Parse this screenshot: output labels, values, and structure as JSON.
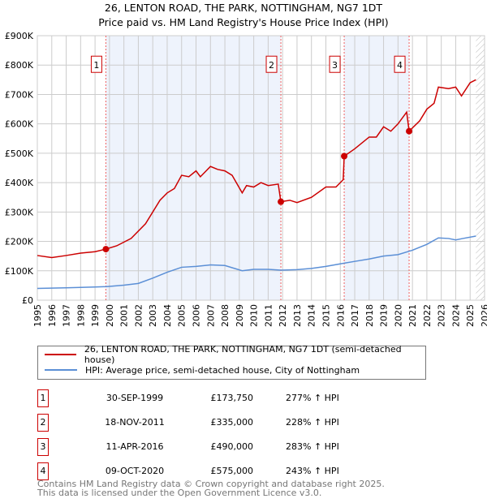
{
  "title": "26, LENTON ROAD, THE PARK, NOTTINGHAM, NG7 1DT",
  "subtitle": "Price paid vs. HM Land Registry's House Price Index (HPI)",
  "chart_data": {
    "type": "line",
    "xlim": [
      1995,
      2026
    ],
    "ylim": [
      0,
      900000
    ],
    "yticks": [
      0,
      100000,
      200000,
      300000,
      400000,
      500000,
      600000,
      700000,
      800000,
      900000
    ],
    "ytick_labels": [
      "£0",
      "£100K",
      "£200K",
      "£300K",
      "£400K",
      "£500K",
      "£600K",
      "£700K",
      "£800K",
      "£900K"
    ],
    "xticks": [
      "1995",
      "1996",
      "1997",
      "1998",
      "1999",
      "2000",
      "2001",
      "2002",
      "2003",
      "2004",
      "2005",
      "2006",
      "2007",
      "2008",
      "2009",
      "2010",
      "2011",
      "2012",
      "2013",
      "2014",
      "2015",
      "2016",
      "2017",
      "2018",
      "2019",
      "2020",
      "2021",
      "2022",
      "2023",
      "2024",
      "2025",
      "2026"
    ],
    "grid": true,
    "forecast_hatch_from": 2025.4,
    "shaded_ranges": [
      [
        1999.75,
        2011.88
      ],
      [
        2016.27,
        2020.77
      ]
    ],
    "series": [
      {
        "name": "26, LENTON ROAD, THE PARK, NOTTINGHAM, NG7 1DT (semi-detached house)",
        "color": "#cc0000",
        "x": [
          1995,
          1996,
          1997,
          1998,
          1999,
          1999.75,
          2000.5,
          2001.5,
          2002.5,
          2003.5,
          2004,
          2004.5,
          2005,
          2005.5,
          2006,
          2006.3,
          2007,
          2007.5,
          2008,
          2008.5,
          2009.2,
          2009.5,
          2010,
          2010.5,
          2011,
          2011.7,
          2011.88,
          2012.5,
          2013,
          2014,
          2015,
          2015.7,
          2016.2,
          2016.27,
          2017,
          2018,
          2018.5,
          2019,
          2019.5,
          2020,
          2020.6,
          2020.77,
          2021.5,
          2022,
          2022.5,
          2022.8,
          2023.5,
          2024,
          2024.4,
          2025,
          2025.4
        ],
        "y": [
          152000,
          145000,
          152000,
          160000,
          165000,
          173750,
          185000,
          210000,
          260000,
          340000,
          365000,
          380000,
          425000,
          420000,
          440000,
          420000,
          455000,
          445000,
          440000,
          425000,
          365000,
          390000,
          385000,
          400000,
          390000,
          395000,
          335000,
          340000,
          332000,
          350000,
          385000,
          385000,
          410000,
          490000,
          515000,
          555000,
          555000,
          590000,
          575000,
          600000,
          640000,
          575000,
          610000,
          650000,
          670000,
          725000,
          720000,
          725000,
          695000,
          740000,
          750000
        ]
      },
      {
        "name": "HPI: Average price, semi-detached house, City of Nottingham",
        "color": "#5b8fd6",
        "x": [
          1995,
          1997,
          1999,
          1999.75,
          2001,
          2002,
          2003,
          2004,
          2005,
          2006,
          2007,
          2008,
          2009.2,
          2010,
          2011,
          2011.88,
          2013,
          2014,
          2015,
          2016.27,
          2017,
          2018,
          2019,
          2020,
          2021,
          2022,
          2022.8,
          2023.5,
          2024,
          2024.5,
          2025.4
        ],
        "y": [
          40000,
          42000,
          45000,
          46000,
          51000,
          57000,
          75000,
          95000,
          112000,
          115000,
          120000,
          118000,
          100000,
          105000,
          105000,
          102000,
          104000,
          108000,
          115000,
          126000,
          132000,
          140000,
          150000,
          155000,
          170000,
          190000,
          212000,
          210000,
          205000,
          210000,
          218000
        ]
      }
    ],
    "sales": [
      {
        "num": "1",
        "x": 1999.75,
        "price": 173750,
        "date": "30-SEP-1999",
        "price_label": "£173,750",
        "hpi": "277% ↑ HPI"
      },
      {
        "num": "2",
        "x": 2011.88,
        "price": 335000,
        "date": "18-NOV-2011",
        "price_label": "£335,000",
        "hpi": "228% ↑ HPI"
      },
      {
        "num": "3",
        "x": 2016.27,
        "price": 490000,
        "date": "11-APR-2016",
        "price_label": "£490,000",
        "hpi": "283% ↑ HPI"
      },
      {
        "num": "4",
        "x": 2020.77,
        "price": 575000,
        "date": "09-OCT-2020",
        "price_label": "£575,000",
        "hpi": "243% ↑ HPI"
      }
    ],
    "marker_label_y": 800000
  },
  "legend": {
    "property": "26, LENTON ROAD, THE PARK, NOTTINGHAM, NG7 1DT (semi-detached house)",
    "hpi": "HPI: Average price, semi-detached house, City of Nottingham"
  },
  "footer": {
    "line1": "Contains HM Land Registry data © Crown copyright and database right 2025.",
    "line2": "This data is licensed under the Open Government Licence v3.0."
  }
}
